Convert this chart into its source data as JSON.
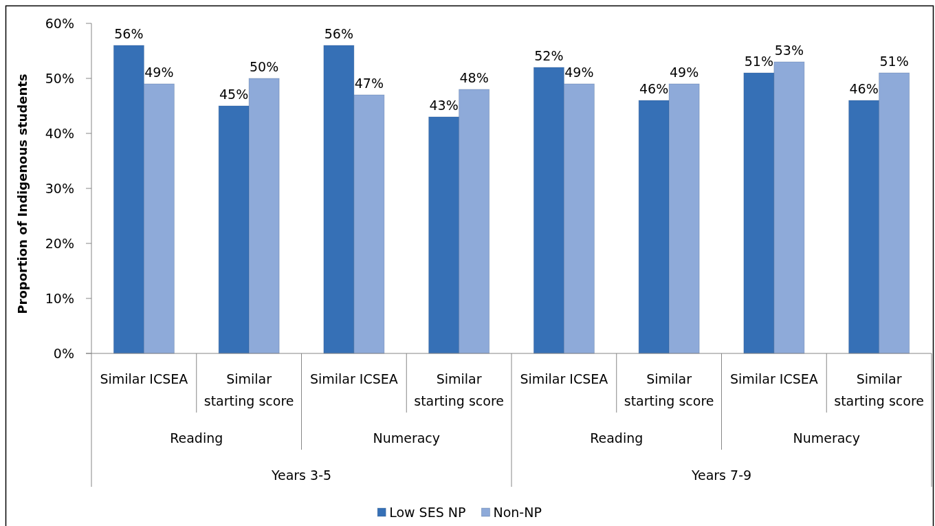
{
  "chart_data": {
    "type": "bar",
    "ylabel": "Proportion of Indigenous students",
    "categories": [
      "Similar ICSEA",
      "Similar starting score",
      "Similar ICSEA",
      "Similar starting score",
      "Similar ICSEA",
      "Similar starting score",
      "Similar ICSEA",
      "Similar starting score"
    ],
    "annotations": [
      "Reading",
      "Numeracy",
      "Reading",
      "Numeracy",
      "Years 3-5",
      "Years 7-9"
    ],
    "series": [
      {
        "name": "Low SES NP",
        "color": "#3670b6",
        "values": [
          56,
          45,
          56,
          43,
          52,
          46,
          51,
          46
        ],
        "value_labels": [
          "56%",
          "45%",
          "56%",
          "43%",
          "52%",
          "46%",
          "51%",
          "46%"
        ]
      },
      {
        "name": "Non-NP",
        "color": "#8eaad9",
        "values": [
          49,
          50,
          47,
          48,
          49,
          49,
          53,
          51
        ],
        "value_labels": [
          "49%",
          "50%",
          "47%",
          "48%",
          "49%",
          "49%",
          "53%",
          "51%"
        ]
      }
    ],
    "ylim": [
      0,
      60
    ],
    "yticks": [
      {
        "value": 0,
        "label": "0%"
      },
      {
        "value": 10,
        "label": "10%"
      },
      {
        "value": 20,
        "label": "20%"
      },
      {
        "value": 30,
        "label": "30%"
      },
      {
        "value": 40,
        "label": "40%"
      },
      {
        "value": 50,
        "label": "50%"
      },
      {
        "value": 60,
        "label": "60%"
      }
    ],
    "legend": "bottom"
  }
}
